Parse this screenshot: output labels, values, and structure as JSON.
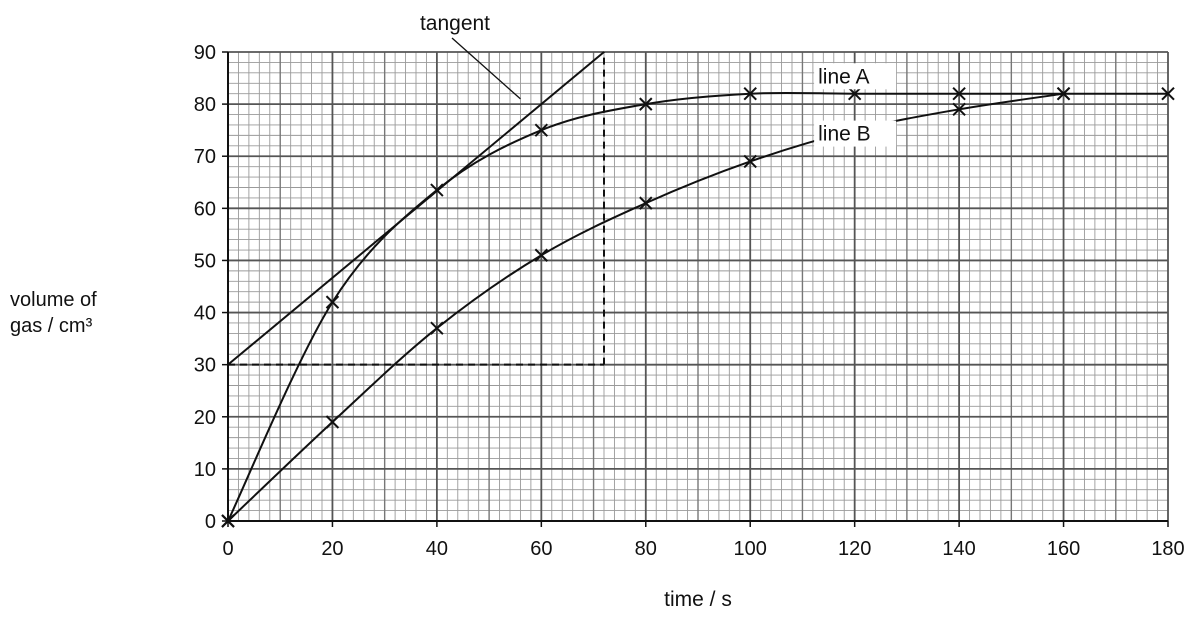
{
  "chart_data": {
    "type": "line",
    "xlabel": "time / s",
    "ylabel_line1": "volume of",
    "ylabel_line2": "gas / cm³",
    "xlim": [
      0,
      180
    ],
    "ylim": [
      0,
      90
    ],
    "xticks": [
      0,
      20,
      40,
      60,
      80,
      100,
      120,
      140,
      160,
      180
    ],
    "yticks": [
      0,
      10,
      20,
      30,
      40,
      50,
      60,
      70,
      80,
      90
    ],
    "grid": true,
    "series": [
      {
        "name": "line A",
        "x": [
          0,
          20,
          40,
          60,
          80,
          100,
          120,
          140,
          160,
          180
        ],
        "y": [
          0,
          42,
          63.5,
          75,
          80,
          82,
          82,
          82,
          82,
          82
        ]
      },
      {
        "name": "line B",
        "x": [
          0,
          20,
          40,
          60,
          80,
          100,
          120,
          140,
          160
        ],
        "y": [
          0,
          19,
          37,
          51,
          61,
          69,
          75,
          79,
          82
        ]
      }
    ],
    "tangent": {
      "label": "tangent",
      "from": [
        0,
        30
      ],
      "to": [
        72,
        90
      ]
    },
    "dashed_guide": {
      "corner": [
        72,
        30
      ]
    }
  }
}
